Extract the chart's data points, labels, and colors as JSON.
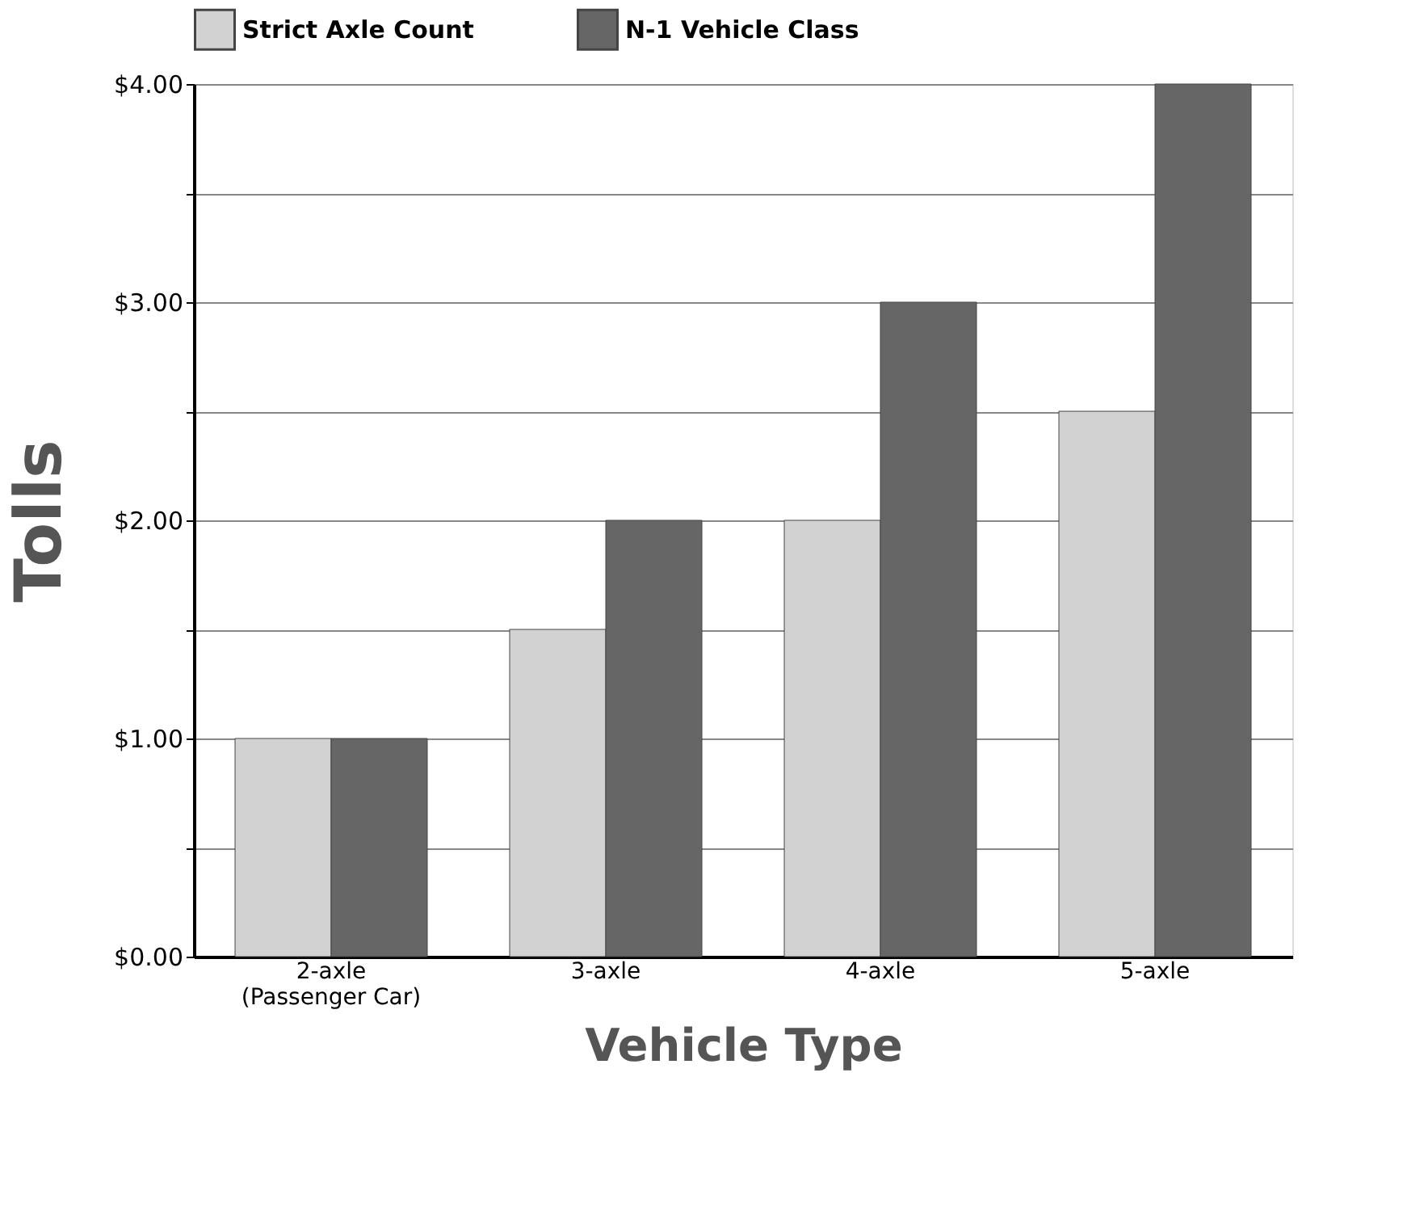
{
  "chart_data": {
    "type": "bar",
    "xlabel": "Vehicle Type",
    "ylabel": "Tolls",
    "categories": [
      "2-axle\n(Passenger Car)",
      "3-axle",
      "4-axle",
      "5-axle"
    ],
    "series": [
      {
        "name": "Strict Axle Count",
        "color": "#d2d2d2",
        "values": [
          1,
          1.5,
          2,
          2.5
        ]
      },
      {
        "name": "N-1 Vehicle Class",
        "color": "#666666",
        "values": [
          1,
          2,
          3,
          4
        ]
      }
    ],
    "ylim": [
      0,
      4
    ],
    "yticks": [
      {
        "value": 0,
        "label": "$0.00"
      },
      {
        "value": 0.5,
        "label": null
      },
      {
        "value": 1,
        "label": "$1.00"
      },
      {
        "value": 1.5,
        "label": null
      },
      {
        "value": 2,
        "label": "$2.00"
      },
      {
        "value": 2.5,
        "label": null
      },
      {
        "value": 3,
        "label": "$3.00"
      },
      {
        "value": 3.5,
        "label": null
      },
      {
        "value": 4,
        "label": "$4.00"
      }
    ],
    "grid": true,
    "legend": "top"
  }
}
